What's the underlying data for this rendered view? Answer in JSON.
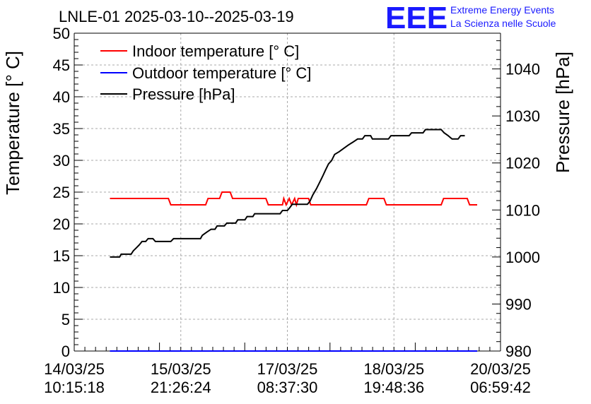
{
  "title": "LNLE-01 2025-03-10--2025-03-19",
  "logo": {
    "mark": "EEE",
    "line1": "Extreme Energy Events",
    "line2": "La Scienza nelle Scuole",
    "color": "#1a1aff"
  },
  "chart_data": {
    "type": "line",
    "title": "LNLE-01 2025-03-10--2025-03-19",
    "xlabel": "",
    "ylabel": "Temperature [° C]",
    "y2label": "Pressure [hPa]",
    "ylim": [
      0,
      50
    ],
    "y2lim": [
      980,
      1047.6
    ],
    "grid": true,
    "legend_position": "top-left",
    "x_ticks": [
      {
        "date": "14/03/25",
        "time": "10:15:18",
        "x": 0
      },
      {
        "date": "15/03/25",
        "time": "21:26:24",
        "x": 35.2
      },
      {
        "date": "17/03/25",
        "time": "08:37:30",
        "x": 70.4
      },
      {
        "date": "18/03/25",
        "time": "19:48:36",
        "x": 105.6
      },
      {
        "date": "20/03/25",
        "time": "06:59:42",
        "x": 140.8
      }
    ],
    "y_ticks": [
      0,
      5,
      10,
      15,
      20,
      25,
      30,
      35,
      40,
      45,
      50
    ],
    "y2_ticks": [
      980,
      990,
      1000,
      1010,
      1020,
      1030,
      1040
    ],
    "series": [
      {
        "name": "Indoor temperature [° C]",
        "color": "#ff0000",
        "axis": "left",
        "points": [
          [
            11.8,
            24.0
          ],
          [
            31.1,
            24.0
          ],
          [
            31.9,
            23.0
          ],
          [
            43.4,
            23.0
          ],
          [
            44.2,
            24.0
          ],
          [
            48.0,
            24.0
          ],
          [
            48.8,
            25.0
          ],
          [
            51.5,
            25.0
          ],
          [
            52.3,
            24.0
          ],
          [
            63.3,
            24.0
          ],
          [
            64.1,
            23.0
          ],
          [
            68.8,
            23.0
          ],
          [
            69.2,
            24.0
          ],
          [
            70.0,
            23.0
          ],
          [
            71.0,
            24.0
          ],
          [
            71.8,
            23.0
          ],
          [
            72.8,
            24.0
          ],
          [
            73.4,
            23.0
          ],
          [
            74.0,
            24.0
          ],
          [
            77.4,
            24.0
          ],
          [
            78.1,
            23.0
          ],
          [
            96.5,
            23.0
          ],
          [
            97.3,
            24.0
          ],
          [
            102.3,
            24.0
          ],
          [
            103.1,
            23.0
          ],
          [
            121.2,
            23.0
          ],
          [
            122.0,
            24.0
          ],
          [
            129.8,
            24.0
          ],
          [
            130.6,
            23.0
          ],
          [
            133.1,
            23.0
          ]
        ]
      },
      {
        "name": "Outdoor temperature [° C]",
        "color": "#0000ff",
        "axis": "left",
        "points": [
          [
            11.8,
            0.0
          ],
          [
            133.1,
            0.0
          ]
        ]
      },
      {
        "name": "Pressure [hPa]",
        "color": "#000000",
        "axis": "right",
        "points": [
          [
            11.8,
            1000.0
          ],
          [
            15.0,
            1000.0
          ],
          [
            15.5,
            1000.6
          ],
          [
            18.8,
            1000.6
          ],
          [
            19.5,
            1001.3
          ],
          [
            20.6,
            1002.0
          ],
          [
            21.5,
            1002.6
          ],
          [
            22.4,
            1003.3
          ],
          [
            23.6,
            1003.3
          ],
          [
            24.4,
            1003.9
          ],
          [
            26.0,
            1003.9
          ],
          [
            26.8,
            1003.3
          ],
          [
            31.9,
            1003.3
          ],
          [
            32.8,
            1003.9
          ],
          [
            41.7,
            1003.9
          ],
          [
            42.3,
            1004.6
          ],
          [
            43.8,
            1005.3
          ],
          [
            45.2,
            1005.9
          ],
          [
            46.5,
            1005.9
          ],
          [
            47.2,
            1006.6
          ],
          [
            49.6,
            1006.6
          ],
          [
            50.4,
            1007.2
          ],
          [
            53.3,
            1007.2
          ],
          [
            54.0,
            1007.9
          ],
          [
            56.4,
            1007.9
          ],
          [
            57.1,
            1008.6
          ],
          [
            59.0,
            1008.6
          ],
          [
            59.6,
            1009.2
          ],
          [
            68.0,
            1009.2
          ],
          [
            68.8,
            1009.9
          ],
          [
            70.4,
            1009.9
          ],
          [
            71.2,
            1010.5
          ],
          [
            72.0,
            1011.2
          ],
          [
            77.0,
            1011.2
          ],
          [
            77.8,
            1011.8
          ],
          [
            78.8,
            1013.2
          ],
          [
            80.0,
            1014.5
          ],
          [
            81.0,
            1015.8
          ],
          [
            82.0,
            1017.1
          ],
          [
            83.0,
            1018.5
          ],
          [
            84.0,
            1019.8
          ],
          [
            85.0,
            1020.5
          ],
          [
            86.0,
            1021.8
          ],
          [
            87.5,
            1022.4
          ],
          [
            89.0,
            1023.1
          ],
          [
            90.5,
            1023.8
          ],
          [
            92.0,
            1024.4
          ],
          [
            93.6,
            1025.1
          ],
          [
            95.2,
            1025.1
          ],
          [
            96.0,
            1025.8
          ],
          [
            97.9,
            1025.8
          ],
          [
            98.5,
            1025.1
          ],
          [
            103.8,
            1025.1
          ],
          [
            104.6,
            1025.8
          ],
          [
            110.6,
            1025.8
          ],
          [
            111.4,
            1026.4
          ],
          [
            115.2,
            1026.4
          ],
          [
            116.0,
            1027.1
          ],
          [
            121.2,
            1027.1
          ],
          [
            122.2,
            1026.4
          ],
          [
            123.5,
            1025.8
          ],
          [
            124.8,
            1025.1
          ],
          [
            126.8,
            1025.1
          ],
          [
            127.6,
            1025.8
          ],
          [
            129.0,
            1025.8
          ]
        ]
      }
    ]
  }
}
